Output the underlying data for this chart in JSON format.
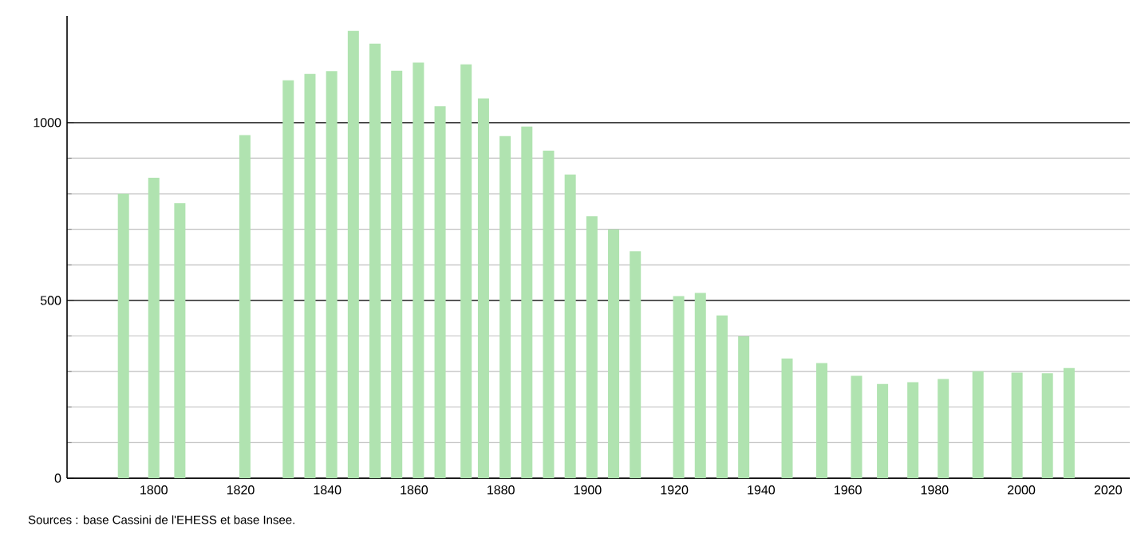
{
  "chart_data": {
    "type": "bar",
    "x": [
      1793,
      1800,
      1806,
      1821,
      1831,
      1836,
      1841,
      1846,
      1851,
      1856,
      1861,
      1866,
      1872,
      1876,
      1881,
      1886,
      1891,
      1896,
      1901,
      1906,
      1911,
      1921,
      1926,
      1931,
      1936,
      1946,
      1954,
      1962,
      1968,
      1975,
      1982,
      1990,
      1999,
      2006,
      2011
    ],
    "values": [
      800,
      845,
      773,
      965,
      1119,
      1137,
      1145,
      1258,
      1222,
      1146,
      1169,
      1046,
      1164,
      1068,
      962,
      989,
      921,
      854,
      737,
      700,
      638,
      512,
      521,
      458,
      399,
      337,
      324,
      288,
      265,
      270,
      279,
      301,
      297,
      295,
      310
    ],
    "color": "#b0e3b0",
    "xlim": [
      1780,
      2025
    ],
    "xticks": [
      1800,
      1820,
      1840,
      1860,
      1880,
      1900,
      1920,
      1940,
      1960,
      1980,
      2000,
      2020
    ],
    "ylim": [
      0,
      1300
    ],
    "yticks": [
      0,
      500,
      1000
    ],
    "grid": "y",
    "annotations": [
      "Sources : base Cassini de l'EHESS et base Insee."
    ]
  }
}
